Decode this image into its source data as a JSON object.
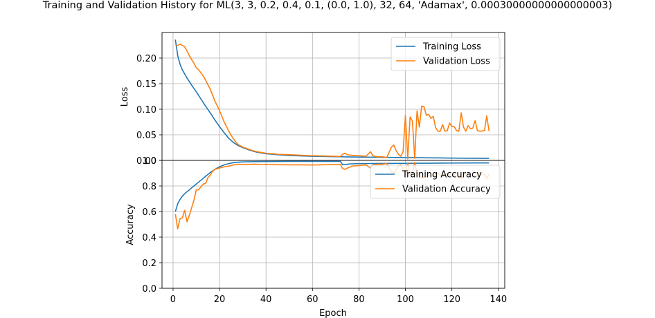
{
  "title": "Training and Validation History for ML(3, 3, 0.2, 0.4, 0.1, (0.0, 1.0), 32, 64, 'Adamax', 0.00030000000000000003)",
  "colors": {
    "training": "#1f77b4",
    "validation": "#ff7f0e",
    "grid": "#b0b0b0"
  },
  "chart_data": [
    {
      "type": "line",
      "ylabel": "Loss",
      "xlim": [
        -4.75,
        142.75
      ],
      "ylim": [
        0.0,
        0.25
      ],
      "y_ticks": [
        0.0,
        0.05,
        0.1,
        0.15,
        0.2
      ],
      "y_tick_labels": [
        "0.00",
        "0.05",
        "0.10",
        "0.15",
        "0.20"
      ],
      "grid": true,
      "legend_position": "upper right",
      "series": [
        {
          "name": "Training Loss",
          "color": "#1f77b4",
          "points": [
            [
              1,
              0.236
            ],
            [
              2,
              0.205
            ],
            [
              3,
              0.188
            ],
            [
              4,
              0.177
            ],
            [
              5,
              0.169
            ],
            [
              6,
              0.161
            ],
            [
              8,
              0.147
            ],
            [
              10,
              0.134
            ],
            [
              12,
              0.12
            ],
            [
              14,
              0.106
            ],
            [
              16,
              0.093
            ],
            [
              18,
              0.079
            ],
            [
              20,
              0.066
            ],
            [
              22,
              0.054
            ],
            [
              24,
              0.043
            ],
            [
              26,
              0.035
            ],
            [
              28,
              0.029
            ],
            [
              30,
              0.025
            ],
            [
              33,
              0.02
            ],
            [
              36,
              0.016
            ],
            [
              40,
              0.013
            ],
            [
              45,
              0.011
            ],
            [
              50,
              0.0095
            ],
            [
              60,
              0.008
            ],
            [
              70,
              0.0072
            ],
            [
              80,
              0.0065
            ],
            [
              90,
              0.006
            ],
            [
              100,
              0.0055
            ],
            [
              110,
              0.005
            ],
            [
              120,
              0.0045
            ],
            [
              130,
              0.0042
            ],
            [
              136,
              0.004
            ]
          ]
        },
        {
          "name": "Validation Loss",
          "color": "#ff7f0e",
          "points": [
            [
              1,
              0.224
            ],
            [
              2,
              0.225
            ],
            [
              3,
              0.227
            ],
            [
              4,
              0.225
            ],
            [
              5,
              0.222
            ],
            [
              6,
              0.214
            ],
            [
              7,
              0.205
            ],
            [
              8,
              0.197
            ],
            [
              9,
              0.19
            ],
            [
              10,
              0.181
            ],
            [
              11,
              0.177
            ],
            [
              12,
              0.171
            ],
            [
              13,
              0.165
            ],
            [
              14,
              0.157
            ],
            [
              15,
              0.148
            ],
            [
              16,
              0.139
            ],
            [
              17,
              0.128
            ],
            [
              18,
              0.116
            ],
            [
              19,
              0.107
            ],
            [
              20,
              0.097
            ],
            [
              21,
              0.086
            ],
            [
              22,
              0.075
            ],
            [
              23,
              0.066
            ],
            [
              24,
              0.057
            ],
            [
              25,
              0.049
            ],
            [
              26,
              0.042
            ],
            [
              27,
              0.036
            ],
            [
              28,
              0.031
            ],
            [
              30,
              0.026
            ],
            [
              33,
              0.021
            ],
            [
              36,
              0.017
            ],
            [
              40,
              0.014
            ],
            [
              45,
              0.012
            ],
            [
              50,
              0.011
            ],
            [
              55,
              0.01
            ],
            [
              60,
              0.009
            ],
            [
              65,
              0.0085
            ],
            [
              70,
              0.008
            ],
            [
              72,
              0.0075
            ],
            [
              73,
              0.012
            ],
            [
              74,
              0.014
            ],
            [
              75,
              0.011
            ],
            [
              77,
              0.01
            ],
            [
              80,
              0.009
            ],
            [
              83,
              0.008
            ],
            [
              85,
              0.017
            ],
            [
              86,
              0.009
            ],
            [
              88,
              0.007
            ],
            [
              90,
              0.007
            ],
            [
              92,
              0.006
            ],
            [
              94,
              0.026
            ],
            [
              95,
              0.03
            ],
            [
              96,
              0.019
            ],
            [
              97,
              0.012
            ],
            [
              98,
              0.008
            ],
            [
              99,
              0.017
            ],
            [
              100,
              0.088
            ],
            [
              101,
              0.003
            ],
            [
              102,
              0.085
            ],
            [
              103,
              0.077
            ],
            [
              104,
              0.004
            ],
            [
              105,
              0.097
            ],
            [
              106,
              0.065
            ],
            [
              107,
              0.106
            ],
            [
              108,
              0.105
            ],
            [
              109,
              0.088
            ],
            [
              110,
              0.09
            ],
            [
              111,
              0.082
            ],
            [
              112,
              0.086
            ],
            [
              113,
              0.064
            ],
            [
              114,
              0.057
            ],
            [
              115,
              0.057
            ],
            [
              116,
              0.07
            ],
            [
              117,
              0.057
            ],
            [
              118,
              0.058
            ],
            [
              119,
              0.073
            ],
            [
              120,
              0.066
            ],
            [
              121,
              0.066
            ],
            [
              122,
              0.058
            ],
            [
              123,
              0.057
            ],
            [
              124,
              0.093
            ],
            [
              125,
              0.065
            ],
            [
              126,
              0.057
            ],
            [
              127,
              0.068
            ],
            [
              128,
              0.062
            ],
            [
              129,
              0.063
            ],
            [
              130,
              0.078
            ],
            [
              131,
              0.058
            ],
            [
              132,
              0.057
            ],
            [
              134,
              0.058
            ],
            [
              135,
              0.087
            ],
            [
              136,
              0.057
            ]
          ]
        }
      ]
    },
    {
      "type": "line",
      "ylabel": "Accuracy",
      "xlabel": "Epoch",
      "xlim": [
        -4.75,
        142.75
      ],
      "ylim": [
        0.0,
        1.0
      ],
      "x_ticks": [
        0,
        20,
        40,
        60,
        80,
        100,
        120,
        140
      ],
      "x_tick_labels": [
        "0",
        "20",
        "40",
        "60",
        "80",
        "100",
        "120",
        "140"
      ],
      "y_ticks": [
        0.0,
        0.2,
        0.4,
        0.6,
        0.8,
        1.0
      ],
      "y_tick_labels": [
        "0.0",
        "0.2",
        "0.4",
        "0.6",
        "0.8",
        "1.0"
      ],
      "grid": true,
      "legend_position": "upper right",
      "series": [
        {
          "name": "Training Accuracy",
          "color": "#1f77b4",
          "points": [
            [
              1,
              0.6
            ],
            [
              2,
              0.66
            ],
            [
              3,
              0.695
            ],
            [
              4,
              0.72
            ],
            [
              5,
              0.74
            ],
            [
              6,
              0.755
            ],
            [
              8,
              0.785
            ],
            [
              10,
              0.815
            ],
            [
              12,
              0.845
            ],
            [
              14,
              0.875
            ],
            [
              16,
              0.905
            ],
            [
              18,
              0.93
            ],
            [
              20,
              0.95
            ],
            [
              22,
              0.965
            ],
            [
              24,
              0.975
            ],
            [
              26,
              0.982
            ],
            [
              28,
              0.986
            ],
            [
              30,
              0.988
            ],
            [
              35,
              0.99
            ],
            [
              40,
              0.991
            ],
            [
              50,
              0.992
            ],
            [
              60,
              0.992
            ],
            [
              70,
              0.992
            ],
            [
              72,
              0.992
            ],
            [
              73,
              0.965
            ],
            [
              74,
              0.968
            ],
            [
              76,
              0.972
            ],
            [
              80,
              0.975
            ],
            [
              90,
              0.976
            ],
            [
              100,
              0.977
            ],
            [
              110,
              0.978
            ],
            [
              120,
              0.979
            ],
            [
              130,
              0.98
            ],
            [
              136,
              0.98
            ]
          ]
        },
        {
          "name": "Validation Accuracy",
          "color": "#ff7f0e",
          "points": [
            [
              1,
              0.58
            ],
            [
              2,
              0.465
            ],
            [
              3,
              0.545
            ],
            [
              4,
              0.55
            ],
            [
              5,
              0.61
            ],
            [
              6,
              0.52
            ],
            [
              7,
              0.57
            ],
            [
              8,
              0.63
            ],
            [
              9,
              0.69
            ],
            [
              10,
              0.77
            ],
            [
              11,
              0.77
            ],
            [
              12,
              0.795
            ],
            [
              13,
              0.815
            ],
            [
              14,
              0.82
            ],
            [
              15,
              0.865
            ],
            [
              16,
              0.885
            ],
            [
              17,
              0.915
            ],
            [
              18,
              0.93
            ],
            [
              20,
              0.94
            ],
            [
              22,
              0.95
            ],
            [
              24,
              0.955
            ],
            [
              26,
              0.965
            ],
            [
              28,
              0.967
            ],
            [
              30,
              0.968
            ],
            [
              35,
              0.97
            ],
            [
              40,
              0.968
            ],
            [
              45,
              0.966
            ],
            [
              50,
              0.965
            ],
            [
              55,
              0.965
            ],
            [
              60,
              0.964
            ],
            [
              65,
              0.966
            ],
            [
              70,
              0.967
            ],
            [
              72,
              0.968
            ],
            [
              73,
              0.935
            ],
            [
              74,
              0.93
            ],
            [
              75,
              0.94
            ],
            [
              77,
              0.955
            ],
            [
              80,
              0.96
            ],
            [
              83,
              0.965
            ],
            [
              85,
              0.94
            ],
            [
              86,
              0.965
            ],
            [
              88,
              0.97
            ],
            [
              90,
              0.97
            ],
            [
              92,
              0.975
            ],
            [
              94,
              0.91
            ],
            [
              95,
              0.9
            ],
            [
              96,
              0.93
            ],
            [
              97,
              0.955
            ],
            [
              98,
              0.965
            ],
            [
              99,
              0.93
            ],
            [
              100,
              0.9
            ],
            [
              101,
              0.98
            ],
            [
              102,
              0.89
            ],
            [
              103,
              0.9
            ],
            [
              104,
              0.985
            ],
            [
              105,
              0.89
            ],
            [
              106,
              0.88
            ],
            [
              107,
              0.86
            ],
            [
              108,
              0.87
            ],
            [
              110,
              0.88
            ],
            [
              112,
              0.88
            ],
            [
              114,
              0.9
            ],
            [
              116,
              0.87
            ],
            [
              118,
              0.9
            ],
            [
              120,
              0.88
            ],
            [
              122,
              0.9
            ],
            [
              124,
              0.86
            ],
            [
              126,
              0.9
            ],
            [
              128,
              0.89
            ],
            [
              130,
              0.87
            ],
            [
              132,
              0.9
            ],
            [
              134,
              0.89
            ],
            [
              135,
              0.86
            ],
            [
              136,
              0.89
            ]
          ]
        }
      ]
    }
  ]
}
